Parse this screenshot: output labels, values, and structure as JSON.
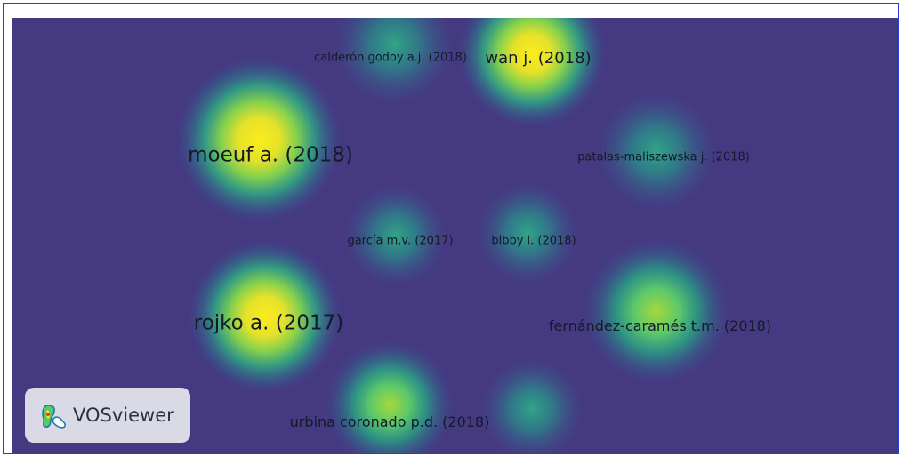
{
  "app": {
    "logo_text": "VOSviewer"
  },
  "colors": {
    "background": "#453a82",
    "border": "#2a3ad6",
    "density_high": "#f9e91e",
    "density_mid": "#58c76a",
    "density_low": "#1f9b8a",
    "label": "#141a26"
  },
  "nodes": [
    {
      "label": "calderón godoy a.j. (2018)",
      "density": 0.45
    },
    {
      "label": "wan j. (2018)",
      "density": 0.95
    },
    {
      "label": "moeuf a. (2018)",
      "density": 1.0
    },
    {
      "label": "patalas-maliszewska j. (2018)",
      "density": 0.4
    },
    {
      "label": "garcía m.v. (2017)",
      "density": 0.35
    },
    {
      "label": "bibby l. (2018)",
      "density": 0.35
    },
    {
      "label": "rojko a. (2017)",
      "density": 0.9
    },
    {
      "label": "fernández-caramés t.m. (2018)",
      "density": 0.7
    },
    {
      "label": "urbina coronado p.d. (2018)",
      "density": 0.65
    }
  ]
}
